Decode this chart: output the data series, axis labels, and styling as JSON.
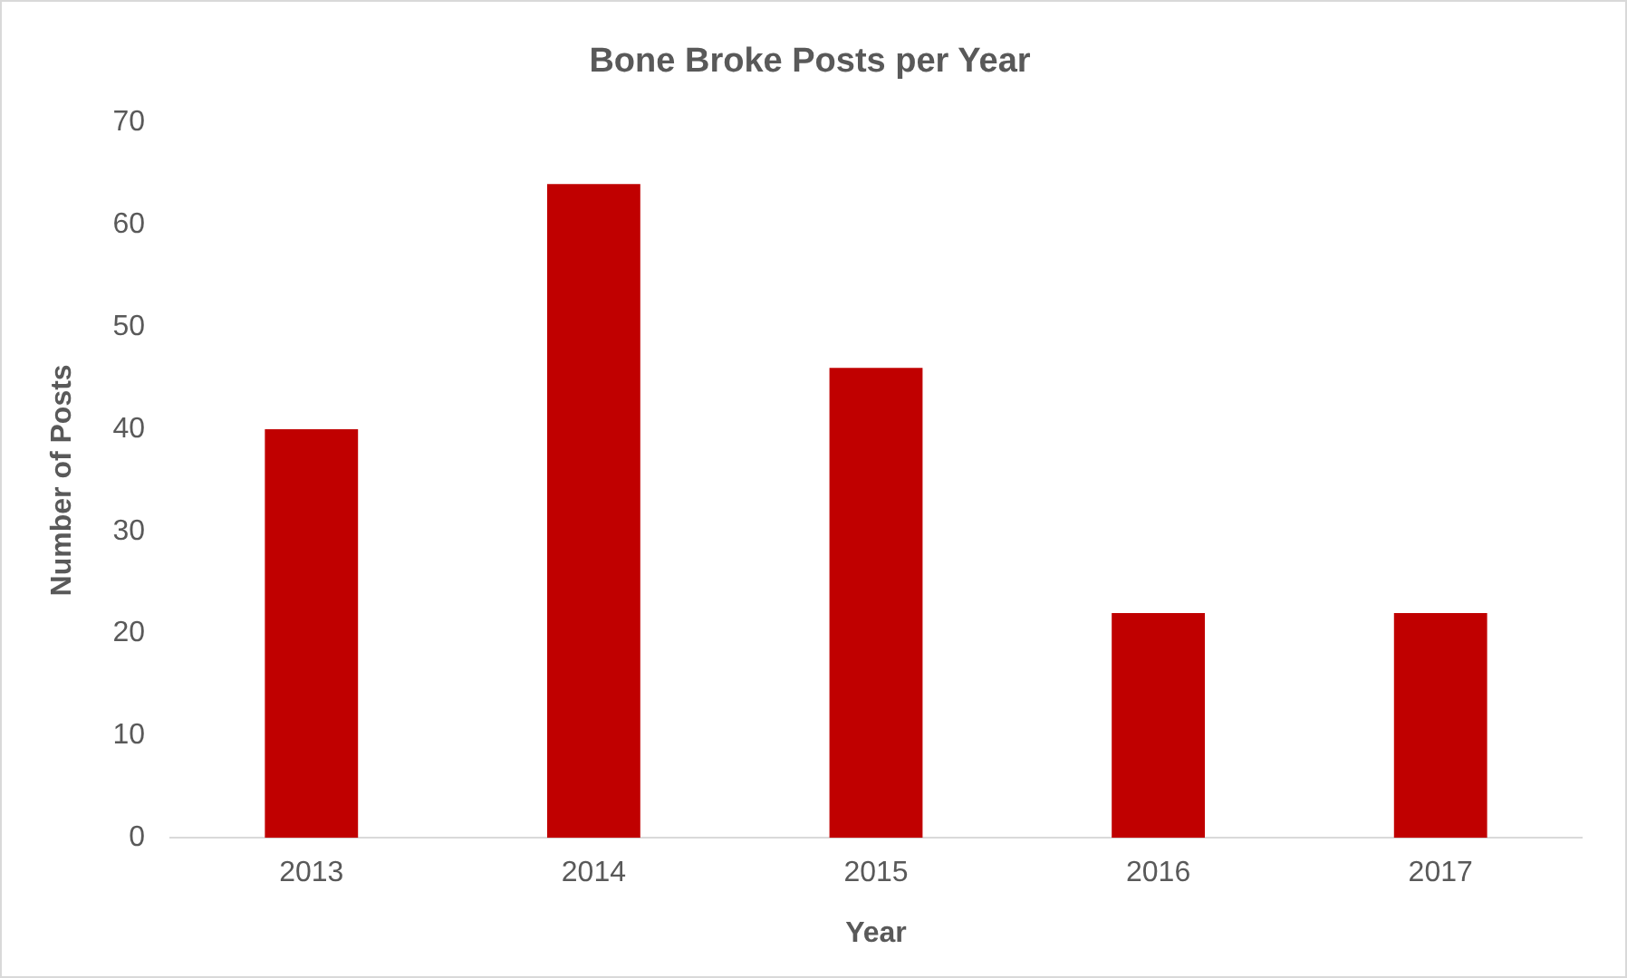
{
  "chart_data": {
    "type": "bar",
    "title": "Bone Broke Posts per Year",
    "xlabel": "Year",
    "ylabel": "Number of Posts",
    "categories": [
      "2013",
      "2014",
      "2015",
      "2016",
      "2017"
    ],
    "values": [
      40,
      64,
      46,
      22,
      22
    ],
    "color": "#c00000",
    "ylim": [
      0,
      70
    ],
    "yticks": [
      0,
      10,
      20,
      30,
      40,
      50,
      60,
      70
    ],
    "grid": false,
    "legend": false
  }
}
